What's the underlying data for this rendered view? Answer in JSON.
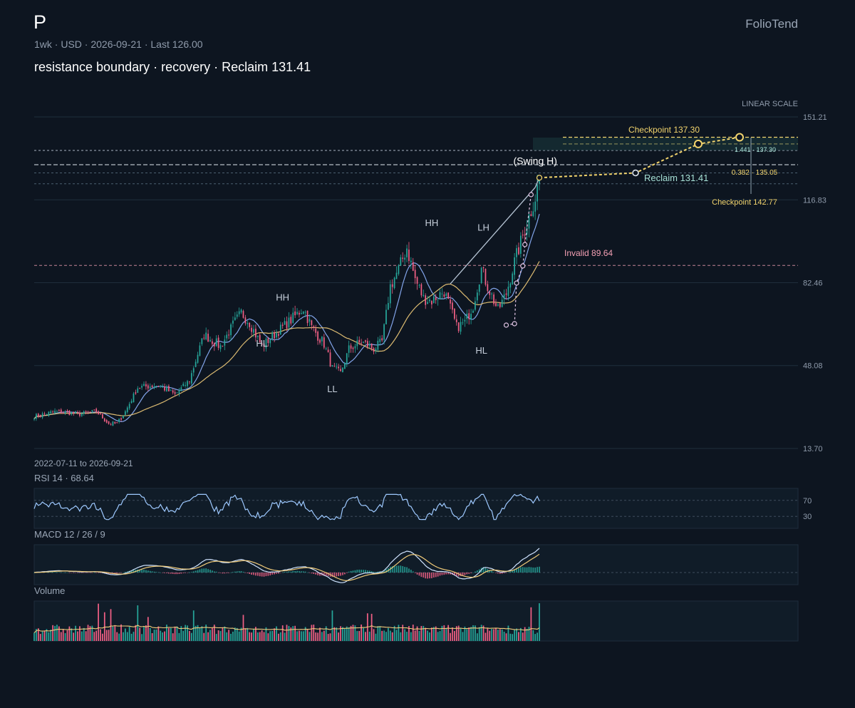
{
  "header": {
    "ticker": "P",
    "meta": "1wk · USD · 2026-09-21 · Last 126.00",
    "headline": "resistance boundary · recovery · Reclaim 131.41",
    "brand": "FolioTend"
  },
  "colors": {
    "background": "#0d1520",
    "up": "#26a69a",
    "down": "#ef5f84",
    "ma_fast": "#8fb4ff",
    "ma_slow": "#f2cc7a",
    "rsi": "#9ec9ff",
    "macd": "#cfe3ff",
    "signal": "#f2cc7a",
    "checkpoint": "#f2d46d",
    "invalid": "#f4a0b4",
    "reclaim": "#a7e1d6"
  },
  "footer": {
    "date_range": "2022-07-11 to 2026-09-21",
    "rsi_title": "RSI 14 · 68.64",
    "macd_title": "MACD 12 / 26 / 9",
    "volume_title": "Volume"
  },
  "chart_data": {
    "type": "candlestick",
    "interval": "1wk",
    "currency": "USD",
    "start_date": "2022-07-11",
    "end_date": "2026-09-21",
    "scale_label": "LINEAR SCALE",
    "ylim": [
      13.7,
      151.21
    ],
    "y_ticks": [
      "151.21",
      "116.83",
      "82.46",
      "48.08",
      "13.70"
    ],
    "last_price": 126.0,
    "close_anchors": [
      [
        0,
        27
      ],
      [
        10,
        29
      ],
      [
        22,
        28
      ],
      [
        30,
        29
      ],
      [
        36,
        24
      ],
      [
        40,
        24
      ],
      [
        44,
        29
      ],
      [
        50,
        39
      ],
      [
        60,
        40
      ],
      [
        68,
        36
      ],
      [
        75,
        42
      ],
      [
        82,
        61
      ],
      [
        90,
        56
      ],
      [
        96,
        65
      ],
      [
        100,
        70
      ],
      [
        104,
        66
      ],
      [
        110,
        56
      ],
      [
        116,
        61
      ],
      [
        124,
        67
      ],
      [
        130,
        72
      ],
      [
        134,
        64
      ],
      [
        140,
        57
      ],
      [
        144,
        47
      ],
      [
        148,
        45
      ],
      [
        152,
        55
      ],
      [
        158,
        58
      ],
      [
        164,
        55
      ],
      [
        168,
        58
      ],
      [
        172,
        81
      ],
      [
        176,
        88
      ],
      [
        180,
        97
      ],
      [
        184,
        84
      ],
      [
        188,
        76
      ],
      [
        192,
        75
      ],
      [
        198,
        79
      ],
      [
        204,
        64
      ],
      [
        208,
        66
      ],
      [
        212,
        73
      ],
      [
        216,
        88
      ],
      [
        220,
        79
      ],
      [
        224,
        71
      ],
      [
        228,
        78
      ],
      [
        232,
        91
      ],
      [
        236,
        102
      ],
      [
        239,
        110
      ],
      [
        242,
        118
      ],
      [
        244,
        126
      ]
    ],
    "swing_labels": [
      {
        "text": "HL",
        "index": 110,
        "price": 56
      },
      {
        "text": "HH",
        "index": 120,
        "price": 75
      },
      {
        "text": "LL",
        "index": 144,
        "price": 37
      },
      {
        "text": "HH",
        "index": 192,
        "price": 106
      },
      {
        "text": "LH",
        "index": 217,
        "price": 104
      },
      {
        "text": "HL",
        "index": 216,
        "price": 53
      },
      {
        "text": "(Swing H)",
        "index": 242,
        "price": 131.5
      }
    ],
    "levels": {
      "invalid": {
        "label": "Invalid 89.64",
        "value": 89.64
      },
      "reclaim": {
        "label": "Reclaim 131.41",
        "value": 131.41
      },
      "checkpoint_1": {
        "label": "Checkpoint 137.30",
        "value": 137.3
      },
      "checkpoint_2": {
        "label": "Checkpoint 142.77",
        "value": 142.77
      },
      "aux_levels": [
        123.5,
        128.0
      ]
    },
    "fib_labels": [
      "1.441 · 137.30",
      "0.382 · 135.05"
    ],
    "rsi": {
      "period": 14,
      "value": 68.64,
      "bands": [
        70,
        30
      ],
      "band_labels": [
        "70",
        "30"
      ]
    },
    "macd": {
      "fast": 12,
      "slow": 26,
      "signal": 9
    },
    "moving_averages": [
      "fast",
      "slow"
    ]
  }
}
